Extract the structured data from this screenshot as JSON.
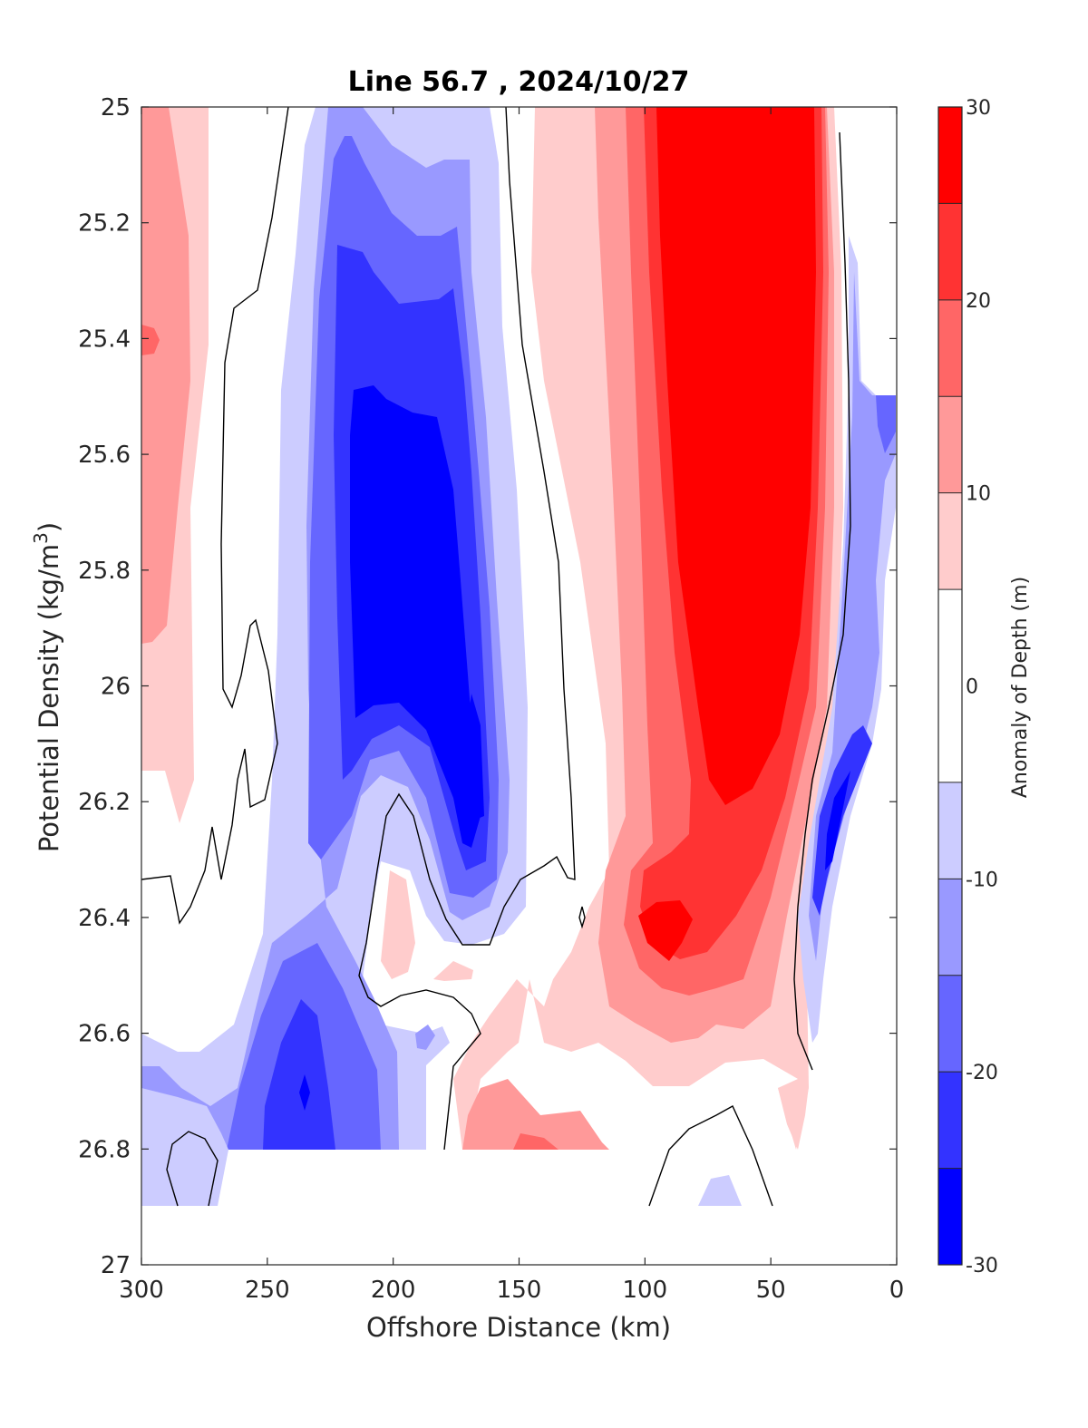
{
  "chart_data": {
    "type": "heatmap",
    "subtype": "filled-contour",
    "title": "Line 56.7 , 2024/10/27",
    "xlabel": "Offshore Distance (km)",
    "ylabel_main": "Potential Density (kg/m",
    "ylabel_sup": "3",
    "ylabel_end": ")",
    "xlim": [
      300,
      0
    ],
    "x_reversed": true,
    "ylim": [
      25,
      27
    ],
    "y_reversed": true,
    "x_ticks": [
      "300",
      "250",
      "200",
      "150",
      "100",
      "50",
      "0"
    ],
    "y_ticks": [
      "25",
      "25.2",
      "25.4",
      "25.6",
      "25.8",
      "26",
      "26.2",
      "26.4",
      "26.6",
      "26.8",
      "27"
    ],
    "colorbar": {
      "label": "Anomaly of Depth (m)",
      "range": [
        -30,
        30
      ],
      "ticks": [
        "30",
        "20",
        "10",
        "0",
        "-10",
        "-20",
        "-30"
      ],
      "levels": [
        -30,
        -25,
        -20,
        -15,
        -10,
        -5,
        5,
        10,
        15,
        20,
        25,
        30
      ],
      "colors": [
        "#0000ff",
        "#3333ff",
        "#6666ff",
        "#9999ff",
        "#ccccff",
        "#ffffff",
        "#ffcccc",
        "#ff9999",
        "#ff6666",
        "#ff3333",
        "#ff0000"
      ]
    },
    "zero_contour": "black line",
    "data_coverage_sigma_max": 26.9,
    "features": [
      {
        "name": "offshore warm anomaly",
        "x": [
          300,
          280
        ],
        "sigma": [
          25.0,
          26.2
        ],
        "anomaly_max": 20
      },
      {
        "name": "cyclonic anomaly",
        "x": [
          230,
          160
        ],
        "sigma": [
          25.0,
          26.4
        ],
        "anomaly_min": -30
      },
      {
        "name": "deep cyclonic anomaly",
        "x": [
          250,
          215
        ],
        "sigma": [
          26.4,
          26.85
        ],
        "anomaly_min": -30
      },
      {
        "name": "nearshore anticyclonic anomaly",
        "x": [
          140,
          25
        ],
        "sigma": [
          25.0,
          26.7
        ],
        "anomaly_max": 30
      },
      {
        "name": "coastal cyclonic anomaly",
        "x": [
          35,
          15
        ],
        "sigma": [
          25.5,
          26.4
        ],
        "anomaly_min": -30
      }
    ]
  }
}
